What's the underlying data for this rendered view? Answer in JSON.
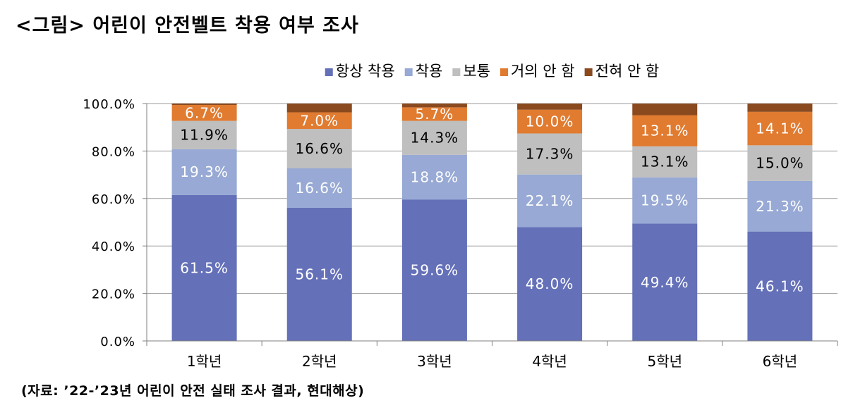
{
  "title": "<그림> 어린이 안전벨트 착용 여부 조사",
  "source": "(자료: ’22-’23년 어린이 안전 실태 조사 결과, 현대해상)",
  "chart_data": {
    "type": "bar",
    "stacked": true,
    "categories": [
      "1학년",
      "2학년",
      "3학년",
      "4학년",
      "5학년",
      "6학년"
    ],
    "series": [
      {
        "name": "항상 착용",
        "color": "#6470b8",
        "values": [
          61.5,
          56.1,
          59.6,
          48.0,
          49.4,
          46.1
        ],
        "labels": [
          "61.5%",
          "56.1%",
          "59.6%",
          "48.0%",
          "49.4%",
          "46.1%"
        ]
      },
      {
        "name": "착용",
        "color": "#97a9d4",
        "values": [
          19.3,
          16.6,
          18.8,
          22.1,
          19.5,
          21.3
        ],
        "labels": [
          "19.3%",
          "16.6%",
          "18.8%",
          "22.1%",
          "19.5%",
          "21.3%"
        ]
      },
      {
        "name": "보통",
        "color": "#bfbfbf",
        "values": [
          11.9,
          16.6,
          14.3,
          17.3,
          13.1,
          15.0
        ],
        "labels": [
          "11.9%",
          "16.6%",
          "14.3%",
          "17.3%",
          "13.1%",
          "15.0%"
        ]
      },
      {
        "name": "거의 안 함",
        "color": "#e07b30",
        "values": [
          6.7,
          7.0,
          5.7,
          10.0,
          13.1,
          14.1
        ],
        "labels": [
          "6.7%",
          "7.0%",
          "5.7%",
          "10.0%",
          "13.1%",
          "14.1%"
        ]
      },
      {
        "name": "전혀 안 함",
        "color": "#8a4a1e",
        "values": [
          0.6,
          3.7,
          1.6,
          2.6,
          4.9,
          3.5
        ],
        "labels": []
      }
    ],
    "y_ticks": [
      "0.0%",
      "20.0%",
      "40.0%",
      "60.0%",
      "80.0%",
      "100.0%"
    ],
    "ylim": [
      0,
      100
    ],
    "grid": true,
    "legend_position": "top",
    "label_colors": [
      "#ffffff",
      "#ffffff",
      "#000000",
      "#ffffff",
      "#000000"
    ]
  }
}
